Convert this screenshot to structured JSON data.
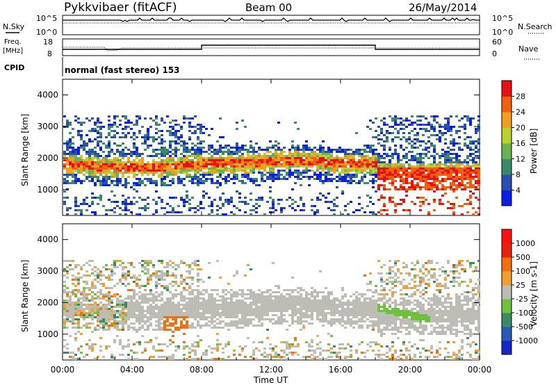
{
  "header": {
    "station": "Pykkvibaer (fitACF)",
    "beam": "Beam 00",
    "date": "26/May/2014"
  },
  "top_panels": {
    "nsky_label": "N.Sky",
    "nsearch_label": "N.Search",
    "scale_top": "10^5",
    "scale_bottom": "10^0",
    "freq_label": "Freq.",
    "freq_unit": "[MHz]",
    "freq_ticks": [
      "18",
      "8"
    ],
    "nave_label": "Nave",
    "nave_ticks": [
      "60",
      "0"
    ],
    "cpid_label": "CPID",
    "cpid_value": "normal (fast stereo) 153"
  },
  "chart_data": [
    {
      "type": "heatmap",
      "title": "Power",
      "xlabel": "",
      "ylabel": "Slant Range [km]",
      "xlim": [
        0,
        24
      ],
      "ylim": [
        180,
        4500
      ],
      "y_ticks": [
        1000,
        2000,
        3000,
        4000
      ],
      "colorbar": {
        "label": "Power [dB]",
        "ticks": [
          "4",
          "8",
          "12",
          "16",
          "20",
          "24",
          "28"
        ],
        "colors": [
          "#0a1ee6",
          "#2a4fb0",
          "#3a8a6a",
          "#6cb250",
          "#b8d030",
          "#f0a020",
          "#f06010",
          "#e81010"
        ]
      }
    },
    {
      "type": "heatmap",
      "title": "Velocity",
      "xlabel": "Time UT",
      "ylabel": "Slant Range [km]",
      "xlim": [
        0,
        24
      ],
      "ylim": [
        180,
        4500
      ],
      "x_ticks": [
        "00:00",
        "04:00",
        "08:00",
        "12:00",
        "16:00",
        "20:00",
        "00:00"
      ],
      "y_ticks": [
        1000,
        2000,
        3000,
        4000
      ],
      "colorbar": {
        "label": "Velocity [m s-1]",
        "ticks": [
          "1000",
          "500",
          "100",
          "25",
          "-25",
          "-100",
          "-500",
          "-1000"
        ],
        "colors": [
          "#1428c8",
          "#2a5ab4",
          "#3a8a64",
          "#70c040",
          "#bdbdb5",
          "#f0a030",
          "#f07010",
          "#e82010",
          "#ff1010"
        ]
      }
    }
  ]
}
